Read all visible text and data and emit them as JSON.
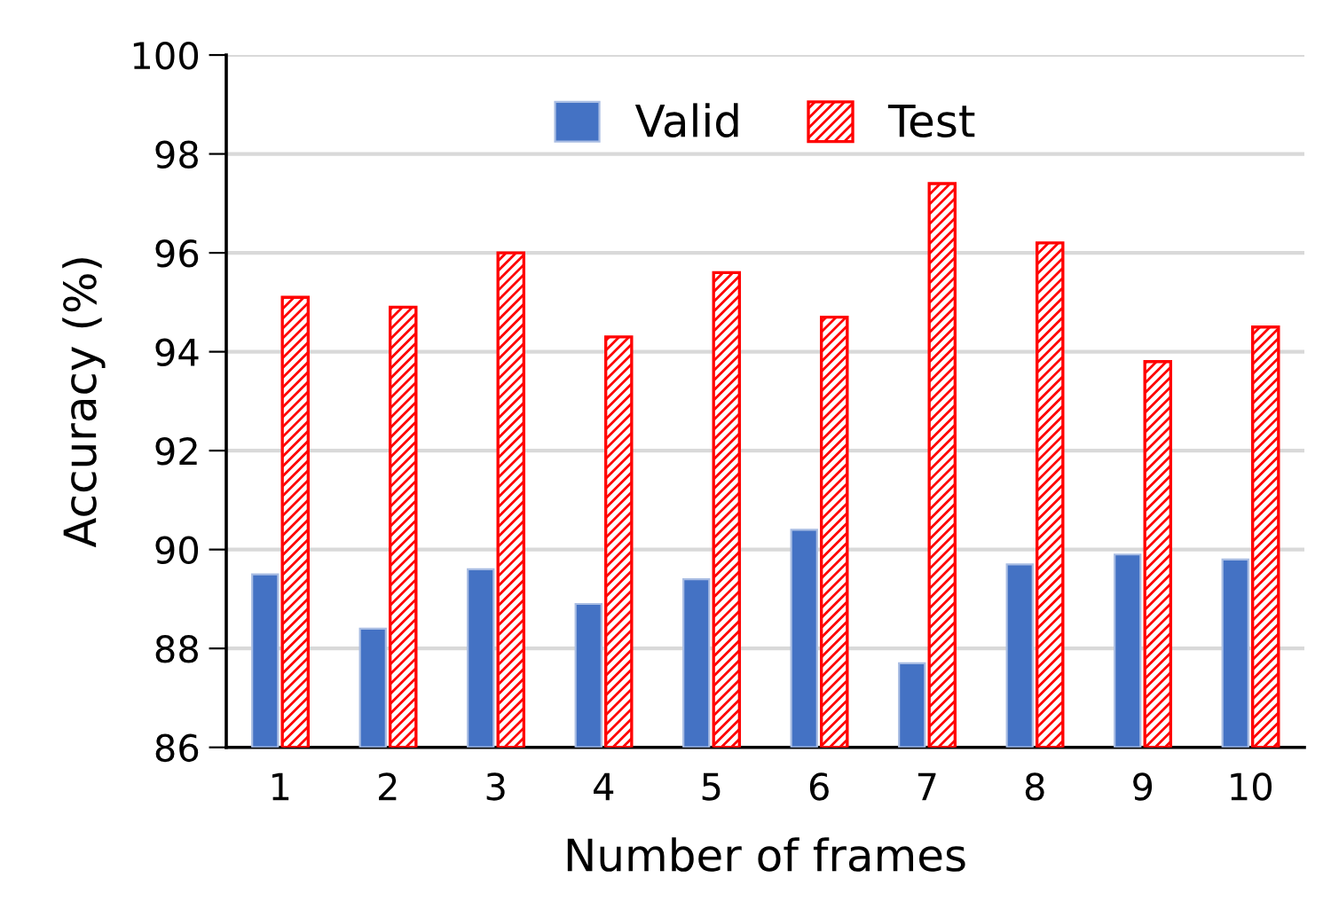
{
  "chart_data": {
    "type": "bar",
    "xlabel": "Number of frames",
    "ylabel": "Accuracy (%)",
    "categories": [
      "1",
      "2",
      "3",
      "4",
      "5",
      "6",
      "7",
      "8",
      "9",
      "10"
    ],
    "series": [
      {
        "name": "Valid",
        "color": "#4472c4",
        "values": [
          89.5,
          88.4,
          89.6,
          88.9,
          89.4,
          90.4,
          87.7,
          89.7,
          89.9,
          89.8
        ]
      },
      {
        "name": "Test",
        "color": "#ff0000",
        "values": [
          95.1,
          94.9,
          96.0,
          94.3,
          95.6,
          94.7,
          97.4,
          96.2,
          93.8,
          94.5
        ]
      }
    ],
    "ylim": [
      86,
      100
    ],
    "yticks": [
      86,
      88,
      90,
      92,
      94,
      96,
      98,
      100
    ],
    "grid": "y",
    "legend": "top"
  }
}
